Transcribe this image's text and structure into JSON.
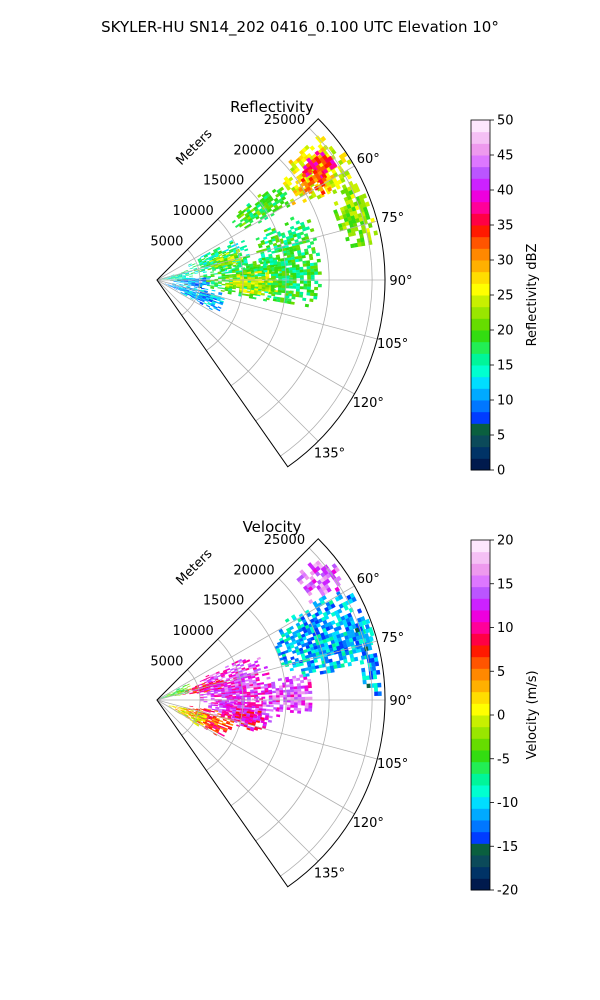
{
  "figure": {
    "suptitle": "SKYLER-HU  SN14_202  0416_0.100 UTC Elevation 10°"
  },
  "chart_data": [
    {
      "type": "polar-sector-heatmap",
      "title": "Reflectivity",
      "radial_axis_label": "Meters",
      "radial_ticks": [
        5000,
        10000,
        15000,
        20000,
        25000
      ],
      "radial_tick_labels": [
        "5000",
        "10000",
        "15000",
        "20000",
        "25000"
      ],
      "r_max": 26500,
      "angular_range_deg": [
        45,
        145
      ],
      "angular_ticks_deg": [
        60,
        75,
        90,
        105,
        120,
        135
      ],
      "angular_tick_labels": [
        "60°",
        "75°",
        "90°",
        "105°",
        "120°",
        "135°"
      ],
      "grid": true,
      "colorbar": {
        "label": "Reflectivity dBZ",
        "vmin": 0,
        "vmax": 50,
        "ticks": [
          0,
          5,
          10,
          15,
          20,
          25,
          30,
          35,
          40,
          45,
          50
        ],
        "tick_labels": [
          "0",
          "5",
          "10",
          "15",
          "20",
          "25",
          "30",
          "35",
          "40",
          "45",
          "50"
        ],
        "colors": [
          "#001a4d",
          "#003366",
          "#0b4a5a",
          "#0a5f3f",
          "#003cff",
          "#0077ff",
          "#00aaff",
          "#00ddff",
          "#00ffd0",
          "#00f59a",
          "#22ee55",
          "#33dd11",
          "#66dd00",
          "#99e600",
          "#c8f000",
          "#ffff00",
          "#ffdd00",
          "#ffb000",
          "#ff8800",
          "#ff5500",
          "#ff1a00",
          "#ff0044",
          "#ff0099",
          "#ee00dd",
          "#cc22ff",
          "#bb55ff",
          "#dd77ff",
          "#ee99ee",
          "#f5c0f5",
          "#fde6fd"
        ]
      },
      "echo_regions": [
        {
          "az": [
            48,
            63
          ],
          "r": [
            18000,
            26000
          ],
          "value": 26
        },
        {
          "az": [
            50,
            58
          ],
          "r": [
            21000,
            24500
          ],
          "value": 36
        },
        {
          "az": [
            54,
            62
          ],
          "r": [
            19500,
            23000
          ],
          "value": 32
        },
        {
          "az": [
            63,
            80
          ],
          "r": [
            22000,
            26000
          ],
          "value": 22
        },
        {
          "az": [
            50,
            60
          ],
          "r": [
            11000,
            18000
          ],
          "value": 19
        },
        {
          "az": [
            62,
            82
          ],
          "r": [
            4000,
            11000
          ],
          "value": 16
        },
        {
          "az": [
            68,
            80
          ],
          "r": [
            6000,
            10000
          ],
          "value": 23
        },
        {
          "az": [
            78,
            100
          ],
          "r": [
            5000,
            16000
          ],
          "value": 18
        },
        {
          "az": [
            85,
            98
          ],
          "r": [
            8000,
            14000
          ],
          "value": 24
        },
        {
          "az": [
            65,
            100
          ],
          "r": [
            12000,
            19000
          ],
          "value": 18
        },
        {
          "az": [
            86,
            100
          ],
          "r": [
            1500,
            6000
          ],
          "value": 10
        },
        {
          "az": [
            100,
            118
          ],
          "r": [
            1000,
            8000
          ],
          "value": 11
        },
        {
          "az": [
            72,
            90
          ],
          "r": [
            0,
            4000
          ],
          "value": 15
        }
      ]
    },
    {
      "type": "polar-sector-heatmap",
      "title": "Velocity",
      "radial_axis_label": "Meters",
      "radial_ticks": [
        5000,
        10000,
        15000,
        20000,
        25000
      ],
      "radial_tick_labels": [
        "5000",
        "10000",
        "15000",
        "20000",
        "25000"
      ],
      "r_max": 26500,
      "angular_range_deg": [
        45,
        145
      ],
      "angular_ticks_deg": [
        60,
        75,
        90,
        105,
        120,
        135
      ],
      "angular_tick_labels": [
        "60°",
        "75°",
        "90°",
        "105°",
        "120°",
        "135°"
      ],
      "grid": true,
      "colorbar": {
        "label": "Velocity (m/s)",
        "vmin": -20,
        "vmax": 20,
        "ticks": [
          -20,
          -15,
          -10,
          -5,
          0,
          5,
          10,
          15,
          20
        ],
        "tick_labels": [
          "-20",
          "-15",
          "-10",
          "-5",
          "0",
          "5",
          "10",
          "15",
          "20"
        ],
        "colors": [
          "#001a4d",
          "#003366",
          "#0b4a5a",
          "#0a5f3f",
          "#003cff",
          "#0077ff",
          "#00aaff",
          "#00ddff",
          "#00ffd0",
          "#00f59a",
          "#22ee55",
          "#33dd11",
          "#66dd00",
          "#99e600",
          "#c8f000",
          "#ffff00",
          "#ffdd00",
          "#ffb000",
          "#ff8800",
          "#ff5500",
          "#ff1a00",
          "#ff0044",
          "#ff0099",
          "#ee00dd",
          "#cc22ff",
          "#bb55ff",
          "#dd77ff",
          "#ee99ee",
          "#f5c0f5",
          "#fde6fd"
        ]
      },
      "echo_regions": [
        {
          "az": [
            48,
            58
          ],
          "r": [
            21000,
            26000
          ],
          "value": 15
        },
        {
          "az": [
            58,
            80
          ],
          "r": [
            15000,
            26000
          ],
          "value": -11
        },
        {
          "az": [
            68,
            88
          ],
          "r": [
            24000,
            26000
          ],
          "value": -12
        },
        {
          "az": [
            64,
            95
          ],
          "r": [
            5000,
            13000
          ],
          "value": 13
        },
        {
          "az": [
            70,
            80
          ],
          "r": [
            3000,
            8000
          ],
          "value": 9
        },
        {
          "az": [
            88,
            104
          ],
          "r": [
            6000,
            14000
          ],
          "value": 13
        },
        {
          "az": [
            96,
            108
          ],
          "r": [
            8000,
            13000
          ],
          "value": 10
        },
        {
          "az": [
            100,
            120
          ],
          "r": [
            3000,
            9000
          ],
          "value": 7
        },
        {
          "az": [
            105,
            122
          ],
          "r": [
            1500,
            6500
          ],
          "value": 1
        },
        {
          "az": [
            62,
            78
          ],
          "r": [
            0,
            4000
          ],
          "value": -4
        },
        {
          "az": [
            80,
            95
          ],
          "r": [
            13000,
            18000
          ],
          "value": 14
        }
      ]
    }
  ]
}
